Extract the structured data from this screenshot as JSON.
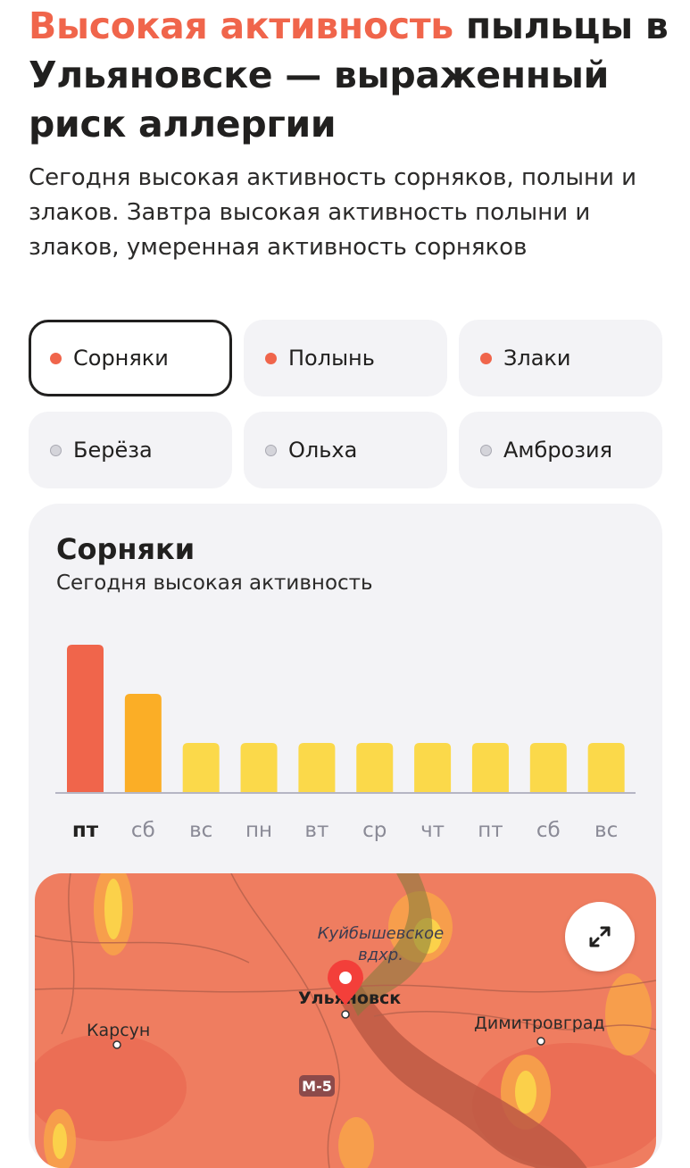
{
  "headline": {
    "accent": "Высокая активность",
    "rest": " пыльцы в Ульяновске — выраженный риск аллергии"
  },
  "subtitle": "Сегодня высокая активность сорняков, полыни и злаков. Завтра высокая активность полыни и злаков, умеренная активность сорняков",
  "chips": [
    {
      "label": "Сорняки",
      "active": true,
      "selected": true
    },
    {
      "label": "Полынь",
      "active": true,
      "selected": false
    },
    {
      "label": "Злаки",
      "active": true,
      "selected": false
    },
    {
      "label": "Берёза",
      "active": false,
      "selected": false
    },
    {
      "label": "Ольха",
      "active": false,
      "selected": false
    },
    {
      "label": "Амброзия",
      "active": false,
      "selected": false
    }
  ],
  "card": {
    "title": "Сорняки",
    "subtitle": "Сегодня высокая активность"
  },
  "chart_data": {
    "type": "bar",
    "categories": [
      "пт",
      "сб",
      "вс",
      "пн",
      "вт",
      "ср",
      "чт",
      "пт",
      "сб",
      "вс"
    ],
    "values": [
      3,
      2,
      1,
      1,
      1,
      1,
      1,
      1,
      1,
      1
    ],
    "ylim": [
      0,
      3
    ],
    "highlighted_category_index": 0,
    "level_colors": {
      "1": "#fbd94a",
      "2": "#fbae26",
      "3": "#f0654b"
    },
    "grid": false
  },
  "map": {
    "reservoir_label": "Куйбышевское вдхр.",
    "city_label": "Ульяновск",
    "towns": [
      "Карсун",
      "Димитровград"
    ],
    "road_label": "М-5"
  },
  "colors": {
    "accent": "#f0654b",
    "chip_bg": "#f3f3f6",
    "text": "#21201f"
  }
}
